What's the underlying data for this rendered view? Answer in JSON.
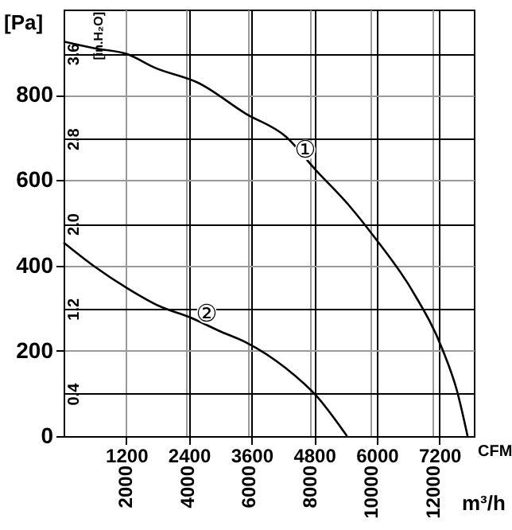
{
  "chart_data": {
    "type": "line",
    "xlabel": "CFM",
    "ylabel": "[Pa]",
    "x2label": "m³/h",
    "y2label": "[in.H₂O]",
    "xlim": [
      0,
      7860
    ],
    "ylim": [
      0,
      1000
    ],
    "xticks": [
      1200,
      2400,
      3600,
      4800,
      6000,
      7200
    ],
    "yticks": [
      0,
      200,
      400,
      600,
      800
    ],
    "x2lim": [
      0,
      13354
    ],
    "x2ticks": [
      2000,
      4000,
      6000,
      8000,
      10000,
      12000
    ],
    "y2lim": [
      0,
      4.015
    ],
    "y2ticks": [
      0.4,
      1.2,
      {
        "value": 2,
        "label": "2.0"
      },
      2.8,
      3.6
    ],
    "series": [
      {
        "color": "#000000",
        "x": [
          0,
          600,
          1230,
          1740,
          2600,
          3490,
          4260,
          4830,
          5460,
          5970,
          6690,
          7260,
          7540,
          7740
        ],
        "values": [
          925,
          909,
          895,
          864,
          827,
          756,
          702,
          624,
          542,
          464,
          339,
          203,
          105,
          0
        ]
      },
      {
        "color": "#000000",
        "x": [
          0,
          600,
          1230,
          1830,
          2430,
          3030,
          3490,
          4260,
          4860,
          5430
        ],
        "values": [
          454,
          397,
          346,
          305,
          278,
          244,
          220,
          159,
          92,
          0
        ]
      }
    ],
    "annotations": [
      {
        "text": "①",
        "x": 4630,
        "y": 671
      },
      {
        "text": "②",
        "x": 2740,
        "y": 288
      }
    ],
    "grid": true,
    "line_style": "solid",
    "marker": "none"
  }
}
